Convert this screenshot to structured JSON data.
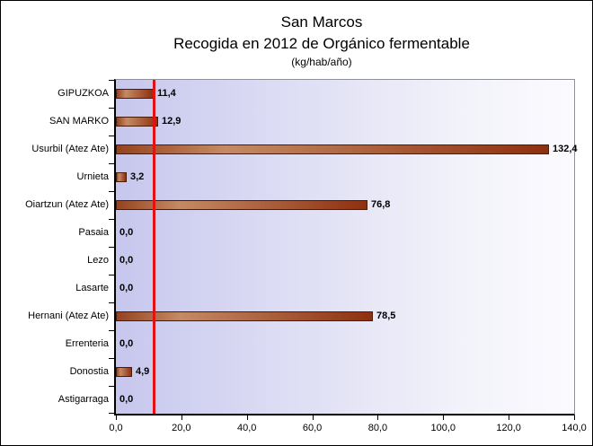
{
  "title": {
    "line1": "San Marcos",
    "line2": "Recogida en 2012 de Orgánico fermentable",
    "line3": "(kg/hab/año)"
  },
  "chart_data": {
    "type": "bar",
    "orientation": "horizontal",
    "title": "San Marcos — Recogida en 2012 de Orgánico fermentable (kg/hab/año)",
    "categories": [
      "GIPUZKOA",
      "SAN MARKO",
      "Usurbil (Atez Ate)",
      "Urnieta",
      "Oiartzun (Atez Ate)",
      "Pasaia",
      "Lezo",
      "Lasarte",
      "Hernani (Atez Ate)",
      "Errenteria",
      "Donostia",
      "Astigarraga"
    ],
    "values": [
      11.4,
      12.9,
      132.4,
      3.2,
      76.8,
      0.0,
      0.0,
      0.0,
      78.5,
      0.0,
      4.9,
      0.0
    ],
    "value_labels": [
      "11,4",
      "12,9",
      "132,4",
      "3,2",
      "76,8",
      "0,0",
      "0,0",
      "0,0",
      "78,5",
      "0,0",
      "4,9",
      "0,0"
    ],
    "x_axis": {
      "min": 0,
      "max": 140,
      "tick_values": [
        0,
        20,
        40,
        60,
        80,
        100,
        120,
        140
      ],
      "tick_labels": [
        "0,0",
        "20,0",
        "40,0",
        "60,0",
        "80,0",
        "100,0",
        "120,0",
        "140,0"
      ]
    },
    "reference_line": {
      "value": 11.4,
      "color": "#e31212"
    },
    "legend": false,
    "gridlines": false,
    "colors": {
      "bar_gradient_start": "#94431f",
      "bar_gradient_mid": "#c48a63",
      "bar_gradient_end": "#8e3010",
      "bar_border": "#4a1c06",
      "plot_bg_left": "#c7c7ee",
      "plot_bg_right": "#fbfbff",
      "axis": "#000000",
      "plot_border": "#90909c"
    }
  }
}
